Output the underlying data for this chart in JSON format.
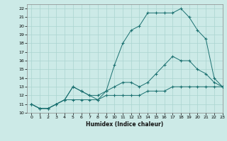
{
  "title": "",
  "xlabel": "Humidex (Indice chaleur)",
  "ylabel": "",
  "background_color": "#cceae7",
  "grid_color": "#aad4d0",
  "line_color": "#1a7070",
  "xlim": [
    -0.5,
    23
  ],
  "ylim": [
    10,
    22.5
  ],
  "xticks": [
    0,
    1,
    2,
    3,
    4,
    5,
    6,
    7,
    8,
    9,
    10,
    11,
    12,
    13,
    14,
    15,
    16,
    17,
    18,
    19,
    20,
    21,
    22,
    23
  ],
  "yticks": [
    10,
    11,
    12,
    13,
    14,
    15,
    16,
    17,
    18,
    19,
    20,
    21,
    22
  ],
  "line1_x": [
    0,
    1,
    2,
    3,
    4,
    5,
    6,
    7,
    8,
    9,
    10,
    11,
    12,
    13,
    14,
    15,
    16,
    17,
    18,
    19,
    20,
    21,
    22,
    23
  ],
  "line1_y": [
    11,
    10.5,
    10.5,
    11,
    11.5,
    11.5,
    11.5,
    11.5,
    11.5,
    12,
    12,
    12,
    12,
    12,
    12.5,
    12.5,
    12.5,
    13,
    13,
    13,
    13,
    13,
    13,
    13
  ],
  "line2_x": [
    0,
    1,
    2,
    3,
    4,
    5,
    6,
    7,
    8,
    9,
    10,
    11,
    12,
    13,
    14,
    15,
    16,
    17,
    18,
    19,
    20,
    21,
    22,
    23
  ],
  "line2_y": [
    11,
    10.5,
    10.5,
    11,
    11.5,
    13,
    12.5,
    12,
    12,
    12.5,
    13,
    13.5,
    13.5,
    13,
    13.5,
    14.5,
    15.5,
    16.5,
    16,
    16,
    15,
    14.5,
    13.5,
    13
  ],
  "line3_x": [
    0,
    1,
    2,
    3,
    4,
    5,
    6,
    7,
    8,
    9,
    10,
    11,
    12,
    13,
    14,
    15,
    16,
    17,
    18,
    19,
    20,
    21,
    22,
    23
  ],
  "line3_y": [
    11,
    10.5,
    10.5,
    11,
    11.5,
    13,
    12.5,
    12,
    11.5,
    12.5,
    15.5,
    18,
    19.5,
    20,
    21.5,
    21.5,
    21.5,
    21.5,
    22,
    21,
    19.5,
    18.5,
    14,
    13
  ]
}
